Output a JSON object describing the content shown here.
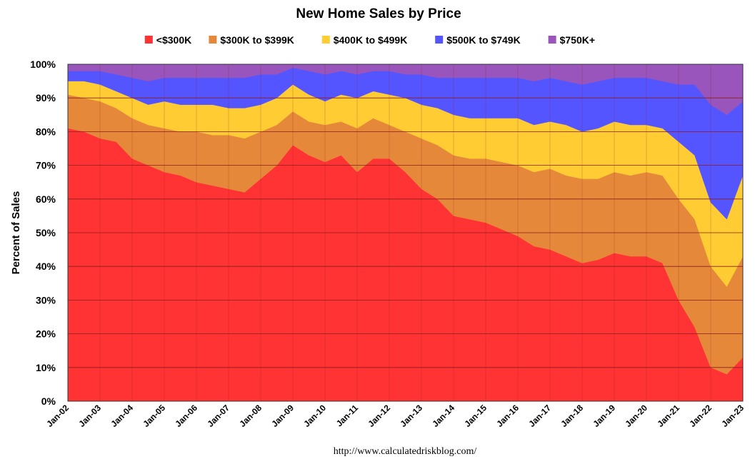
{
  "chart_data": {
    "type": "area",
    "stacked": true,
    "percent": true,
    "title": "New Home Sales by Price",
    "ylabel": "Percent of Sales",
    "xlabel": "",
    "source": "http://www.calculatedriskblog.com/",
    "ylim": [
      0,
      100
    ],
    "yticks": [
      "0%",
      "10%",
      "20%",
      "30%",
      "40%",
      "50%",
      "60%",
      "70%",
      "80%",
      "90%",
      "100%"
    ],
    "xticks": [
      "Jan-02",
      "Jan-03",
      "Jan-04",
      "Jan-05",
      "Jan-06",
      "Jan-07",
      "Jan-08",
      "Jan-09",
      "Jan-10",
      "Jan-11",
      "Jan-12",
      "Jan-13",
      "Jan-14",
      "Jan-15",
      "Jan-16",
      "Jan-17",
      "Jan-18",
      "Jan-19",
      "Jan-20",
      "Jan-21",
      "Jan-22",
      "Jan-23"
    ],
    "grid": true,
    "legend_position": "top",
    "x": [
      "Jan-02",
      "Jul-02",
      "Jan-03",
      "Jul-03",
      "Jan-04",
      "Jul-04",
      "Jan-05",
      "Jul-05",
      "Jan-06",
      "Jul-06",
      "Jan-07",
      "Jul-07",
      "Jan-08",
      "Jul-08",
      "Jan-09",
      "Jul-09",
      "Jan-10",
      "Jul-10",
      "Jan-11",
      "Jul-11",
      "Jan-12",
      "Jul-12",
      "Jan-13",
      "Jul-13",
      "Jan-14",
      "Jul-14",
      "Jan-15",
      "Jul-15",
      "Jan-16",
      "Jul-16",
      "Jan-17",
      "Jul-17",
      "Jan-18",
      "Jul-18",
      "Jan-19",
      "Jul-19",
      "Jan-20",
      "Jul-20",
      "Jan-21",
      "Jul-21",
      "Jan-22",
      "Jul-22",
      "Jan-23"
    ],
    "series": [
      {
        "name": "<$300K",
        "color": "#ff3333",
        "values": [
          81,
          80,
          78,
          77,
          72,
          70,
          68,
          67,
          65,
          64,
          63,
          62,
          66,
          70,
          76,
          73,
          71,
          73,
          68,
          72,
          72,
          68,
          63,
          60,
          55,
          54,
          53,
          51,
          49,
          46,
          45,
          43,
          41,
          42,
          44,
          43,
          43,
          41,
          30,
          22,
          10,
          8,
          13
        ]
      },
      {
        "name": "$300K to $399K",
        "color": "#e6883a",
        "values": [
          10,
          10,
          11,
          10,
          12,
          12,
          13,
          13,
          15,
          15,
          16,
          16,
          14,
          12,
          10,
          10,
          11,
          10,
          13,
          12,
          10,
          12,
          15,
          16,
          18,
          18,
          19,
          20,
          21,
          22,
          24,
          24,
          25,
          24,
          24,
          24,
          25,
          26,
          30,
          32,
          30,
          26,
          30
        ]
      },
      {
        "name": "$400K to $499K",
        "color": "#ffcc33",
        "values": [
          4,
          5,
          5,
          5,
          6,
          6,
          8,
          8,
          8,
          9,
          8,
          9,
          8,
          8,
          8,
          8,
          7,
          8,
          9,
          8,
          9,
          10,
          10,
          11,
          12,
          12,
          12,
          13,
          14,
          14,
          14,
          15,
          14,
          15,
          15,
          15,
          14,
          14,
          17,
          19,
          19,
          20,
          24
        ]
      },
      {
        "name": "$500K to $749K",
        "color": "#5555ff",
        "values": [
          3,
          3,
          4,
          5,
          6,
          7,
          7,
          8,
          8,
          8,
          9,
          9,
          9,
          7,
          5,
          7,
          8,
          7,
          7,
          6,
          7,
          7,
          9,
          9,
          11,
          12,
          12,
          12,
          12,
          13,
          13,
          13,
          14,
          14,
          13,
          14,
          14,
          14,
          17,
          21,
          29,
          31,
          22
        ]
      },
      {
        "name": "$750K+",
        "color": "#9955bb",
        "values": [
          2,
          2,
          2,
          3,
          4,
          5,
          4,
          4,
          4,
          4,
          4,
          4,
          3,
          3,
          1,
          2,
          3,
          2,
          3,
          2,
          2,
          3,
          3,
          4,
          4,
          4,
          4,
          4,
          4,
          5,
          4,
          5,
          6,
          5,
          4,
          4,
          4,
          5,
          6,
          6,
          12,
          15,
          11
        ]
      }
    ]
  }
}
